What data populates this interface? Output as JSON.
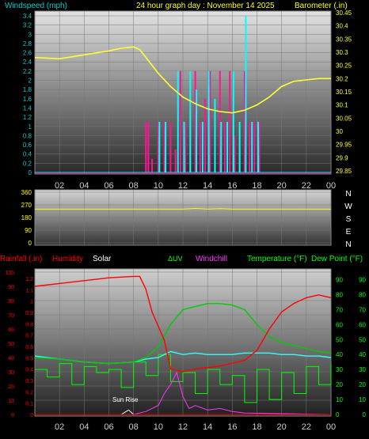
{
  "header": {
    "left": "Windspeed (mph)",
    "center": "24 hour graph day : November 14 2025",
    "right": "Barometer (.in)"
  },
  "hour_ticks": [
    "02",
    "04",
    "06",
    "08",
    "10",
    "12",
    "14",
    "16",
    "18",
    "20",
    "22",
    "00"
  ],
  "middle_header": {
    "rainfall": "Rainfall (.in)",
    "humidity": "Humidity",
    "solar": "Solar",
    "uv": "ΔUV",
    "windchill": "Windchill",
    "temperature": "Temperature (°F)",
    "dew_point": "Dew Point (°F)"
  },
  "annotations": {
    "sun_rise": "Sun Rise"
  },
  "compass": [
    "N",
    "W",
    "S",
    "E",
    "N"
  ],
  "colors": {
    "barometer": "#ffff33",
    "wind_gust": "#ff1493",
    "wind_avg": "#00ffff",
    "direction": "#ffff00",
    "temperature": "#00cc00",
    "humidity": "#ff0000",
    "dewpoint": "#33ffff",
    "windchill": "#ff33ff",
    "uv": "#00ff00",
    "solar": "#ffffff",
    "axis_cyan": "#00cccc",
    "axis_yellow": "#ffff00",
    "axis_red": "#ff0000",
    "axis_green": "#00ff00"
  },
  "chart_data": [
    {
      "type": "line",
      "panel": "wind-barometer",
      "x_hours": [
        0,
        24
      ],
      "y_left_ticks": [
        "3.4",
        "3.2",
        "3",
        "2.8",
        "2.6",
        "2.4",
        "2.2",
        "2",
        "1.8",
        "1.6",
        "1.4",
        "1.2",
        "1",
        "0.8",
        "0.6",
        "0.4",
        "0.2",
        "0"
      ],
      "y_left_ylim": [
        0,
        3.4
      ],
      "y_right_ticks": [
        "30.45",
        "30.4",
        "30.35",
        "30.3",
        "30.25",
        "30.2",
        "30.15",
        "30.1",
        "30.05",
        "30",
        "29.95",
        "29.9",
        "29.85"
      ],
      "y_right_ylim": [
        29.85,
        30.45
      ],
      "barometer": {
        "x": [
          0,
          2,
          4,
          6,
          7,
          8,
          8.5,
          9,
          10,
          11,
          12,
          13,
          14,
          15,
          16,
          17,
          18,
          19,
          20,
          21,
          22,
          23,
          24
        ],
        "y": [
          30.28,
          30.275,
          30.29,
          30.305,
          30.315,
          30.32,
          30.31,
          30.28,
          30.22,
          30.17,
          30.13,
          30.105,
          30.085,
          30.075,
          30.07,
          30.08,
          30.1,
          30.13,
          30.17,
          30.19,
          30.195,
          30.2,
          30.2
        ]
      },
      "wind_gust": {
        "x": [
          9,
          9.2,
          9.5,
          10,
          10.5,
          11,
          11.4,
          11.8,
          12.2,
          12.6,
          13,
          13.4,
          13.8,
          14.2,
          14.6,
          15,
          15.4,
          15.8,
          16.2,
          16.6,
          17,
          17.4,
          17.8,
          18.2
        ],
        "y": [
          1.1,
          1.1,
          0.3,
          1.1,
          1.1,
          1.1,
          0.5,
          2.2,
          1.1,
          1.8,
          2.2,
          1.1,
          1.6,
          2.2,
          1.1,
          2.2,
          1.1,
          2.2,
          0.8,
          1.1,
          2.2,
          1.1,
          1.1,
          1.1
        ]
      },
      "wind_avg": {
        "x": [
          10,
          10.5,
          11.5,
          12,
          12.5,
          13,
          13.5,
          14,
          14.5,
          15,
          15.5,
          16,
          16.5,
          17,
          17.5,
          18
        ],
        "y": [
          1.1,
          1.1,
          2.2,
          1.1,
          2.2,
          1.8,
          1.1,
          2.2,
          1.6,
          1.1,
          1.1,
          2.2,
          1.1,
          3.4,
          1.1,
          1.1
        ]
      }
    },
    {
      "type": "line",
      "panel": "wind-direction",
      "y_ticks": [
        "360",
        "270",
        "180",
        "90",
        "0"
      ],
      "ylim": [
        0,
        360
      ],
      "direction": {
        "x": [
          0,
          12,
          13,
          14,
          15,
          16,
          24
        ],
        "y": [
          240,
          240,
          245,
          240,
          243,
          240,
          240
        ]
      }
    },
    {
      "type": "line",
      "panel": "temperature-humidity",
      "x_hours": [
        0,
        24
      ],
      "y_left_ticks": [
        "100",
        "90",
        "80",
        "70",
        "60",
        "50",
        "40",
        "30",
        "20",
        "10",
        "0"
      ],
      "y_left_ylim": [
        0,
        100
      ],
      "y_rain_ticks": [
        "1.2",
        "1.1",
        "1",
        "0.9",
        "0.8",
        "0.7",
        "0.6",
        "0.5",
        "0.4",
        "0.3",
        "0.2",
        "0.1",
        "0"
      ],
      "y_right_ticks": [
        "90",
        "80",
        "70",
        "60",
        "50",
        "40",
        "30",
        "20",
        "10",
        "0"
      ],
      "y_right_ylim": [
        0,
        95
      ],
      "humidity": {
        "x": [
          0,
          2,
          4,
          6,
          8,
          8.5,
          9,
          9.5,
          10,
          10.5,
          11,
          12,
          13,
          14,
          15,
          16,
          17,
          18,
          19,
          20,
          21,
          22,
          23,
          24
        ],
        "y": [
          90,
          92,
          94,
          96,
          97,
          97,
          88,
          72,
          62,
          52,
          32,
          30,
          32,
          33,
          34,
          36,
          38,
          45,
          60,
          72,
          78,
          82,
          84,
          82
        ]
      },
      "temperature": {
        "x": [
          0,
          2,
          4,
          6,
          8,
          9,
          10,
          11,
          12,
          13,
          14,
          15,
          16,
          17,
          18,
          19,
          20,
          21,
          22,
          23,
          24
        ],
        "y": [
          38,
          37,
          35,
          34,
          35,
          38,
          45,
          60,
          70,
          72,
          74,
          74,
          73,
          70,
          60,
          52,
          48,
          46,
          44,
          42,
          41
        ]
      },
      "dew_point": {
        "x": [
          0,
          2,
          4,
          6,
          8,
          9,
          10,
          11,
          12,
          13,
          14,
          15,
          16,
          17,
          18,
          19,
          20,
          21,
          22,
          23,
          24
        ],
        "y": [
          39,
          37,
          35,
          34,
          35,
          37,
          38,
          42,
          40,
          41,
          40,
          40,
          40,
          41,
          41,
          41,
          40,
          40,
          39,
          39,
          38
        ]
      },
      "windchill": {
        "x": [
          0,
          8,
          9,
          10,
          10.5,
          11,
          11.5,
          12,
          12.5,
          13,
          14,
          15,
          16,
          17,
          24
        ],
        "y": [
          0,
          0,
          2,
          6,
          14,
          20,
          28,
          12,
          4,
          6,
          3,
          4,
          2,
          1,
          0
        ]
      },
      "uv": {
        "x": [
          0,
          1,
          2,
          3,
          4,
          5,
          6,
          7,
          8,
          9,
          10,
          11,
          12,
          13,
          14,
          15,
          16,
          17,
          18,
          19,
          20,
          21,
          22,
          23,
          24
        ],
        "y": [
          30,
          25,
          34,
          20,
          32,
          28,
          30,
          18,
          35,
          26,
          40,
          22,
          28,
          14,
          30,
          20,
          26,
          8,
          30,
          10,
          28,
          14,
          32,
          20,
          34
        ]
      },
      "solar": {
        "x": [
          7,
          7.6,
          8,
          10,
          12,
          14,
          16,
          17,
          18
        ],
        "y": [
          0,
          3,
          0,
          0,
          0,
          0,
          0,
          0,
          0
        ]
      }
    }
  ]
}
